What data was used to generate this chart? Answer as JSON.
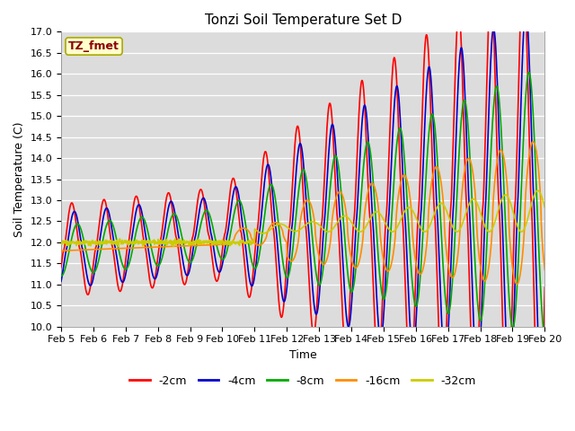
{
  "title": "Tonzi Soil Temperature Set D",
  "xlabel": "Time",
  "ylabel": "Soil Temperature (C)",
  "ylim": [
    10.0,
    17.0
  ],
  "yticks": [
    10.0,
    10.5,
    11.0,
    11.5,
    12.0,
    12.5,
    13.0,
    13.5,
    14.0,
    14.5,
    15.0,
    15.5,
    16.0,
    16.5,
    17.0
  ],
  "annotation": "TZ_fmet",
  "annotation_color": "#8B0000",
  "annotation_bg": "#FFFFCC",
  "annotation_edge": "#AAAA00",
  "series_colors": [
    "#FF0000",
    "#0000CC",
    "#00AA00",
    "#FF8C00",
    "#CCCC00"
  ],
  "series_labels": [
    "-2cm",
    "-4cm",
    "-8cm",
    "-16cm",
    "-32cm"
  ],
  "series_linewidth": 1.2,
  "plot_bg_color": "#DCDCDC",
  "fig_bg_color": "#FFFFFF",
  "xtick_positions": [
    5,
    6,
    7,
    8,
    9,
    10,
    11,
    12,
    13,
    14,
    15,
    16,
    17,
    18,
    19,
    20
  ],
  "xtick_labels": [
    "Feb 5",
    "Feb 6",
    "Feb 7",
    "Feb 8",
    "Feb 9",
    "Feb 10",
    "Feb 11",
    "Feb 12",
    "Feb 13",
    "Feb 14",
    "Feb 15",
    "Feb 16",
    "Feb 17",
    "Feb 18",
    "Feb 19",
    "Feb 20"
  ],
  "title_fontsize": 11,
  "axis_label_fontsize": 9,
  "tick_fontsize": 8,
  "legend_fontsize": 9,
  "annotation_fontsize": 9,
  "x_start": 5.0,
  "x_end": 20.0
}
